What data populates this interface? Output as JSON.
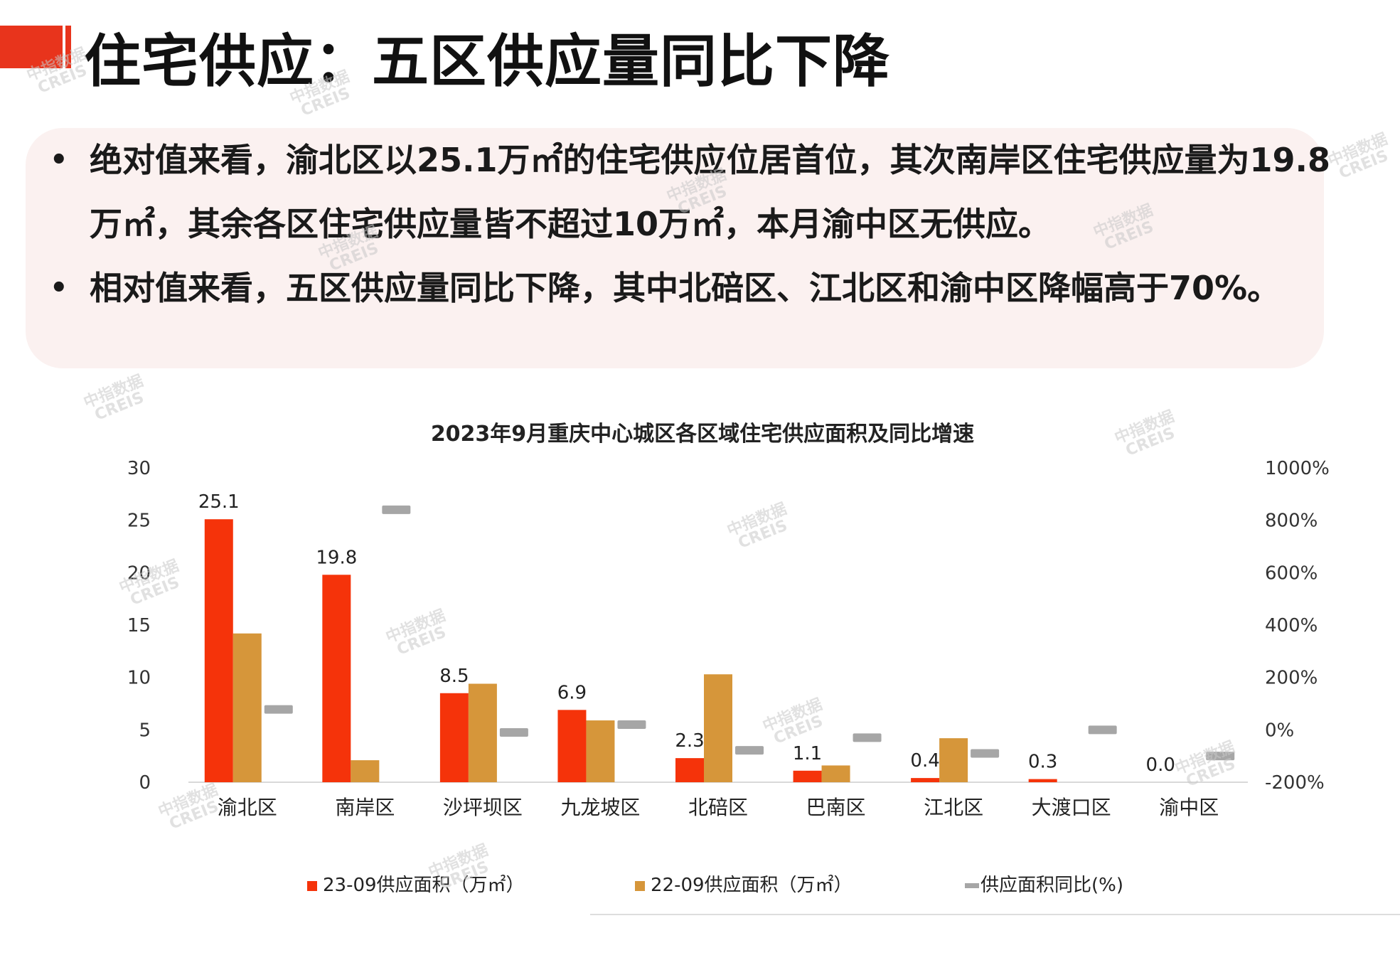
{
  "header": {
    "title": "住宅供应：五区供应量同比下降"
  },
  "bullets": [
    "绝对值来看，渝北区以25.1万㎡的住宅供应位居首位，其次南岸区住宅供应量为19.8万㎡，其余各区住宅供应量皆不超过10万㎡，本月渝中区无供应。",
    "相对值来看，五区供应量同比下降，其中北碚区、江北区和渝中区降幅高于70%。"
  ],
  "watermark": {
    "line1": "中指数据",
    "line2": "CREIS"
  },
  "chart_data": {
    "type": "bar",
    "title": "2023年9月重庆中心城区各区域住宅供应面积及同比增速",
    "categories": [
      "渝北区",
      "南岸区",
      "沙坪坝区",
      "九龙坡区",
      "北碚区",
      "巴南区",
      "江北区",
      "大渡口区",
      "渝中区"
    ],
    "series": [
      {
        "name": "23-09供应面积（万㎡）",
        "axis": "left",
        "values": [
          25.1,
          19.8,
          8.5,
          6.9,
          2.3,
          1.1,
          0.4,
          0.3,
          0.0
        ],
        "color": "#f5330a",
        "data_labels": [
          "25.1",
          "19.8",
          "8.5",
          "6.9",
          "2.3",
          "1.1",
          "0.4",
          "0.3",
          "0.0"
        ]
      },
      {
        "name": "22-09供应面积（万㎡）",
        "axis": "left",
        "values": [
          14.2,
          2.1,
          9.4,
          5.9,
          10.3,
          1.6,
          4.2,
          0.0,
          0.0
        ],
        "color": "#d6963a"
      },
      {
        "name": "供应面积同比(%)",
        "axis": "right",
        "type": "marker",
        "values": [
          78,
          840,
          -10,
          20,
          -78,
          -30,
          -90,
          0,
          -100
        ],
        "color": "#a6a6a6"
      }
    ],
    "y_left": {
      "range": [
        0,
        30
      ],
      "ticks": [
        "0",
        "5",
        "10",
        "15",
        "20",
        "25",
        "30"
      ]
    },
    "y_right": {
      "range": [
        -200,
        1000
      ],
      "ticks": [
        "-200%",
        "0%",
        "200%",
        "400%",
        "600%",
        "800%",
        "1000%"
      ]
    },
    "grid": false,
    "legend_position": "bottom"
  }
}
